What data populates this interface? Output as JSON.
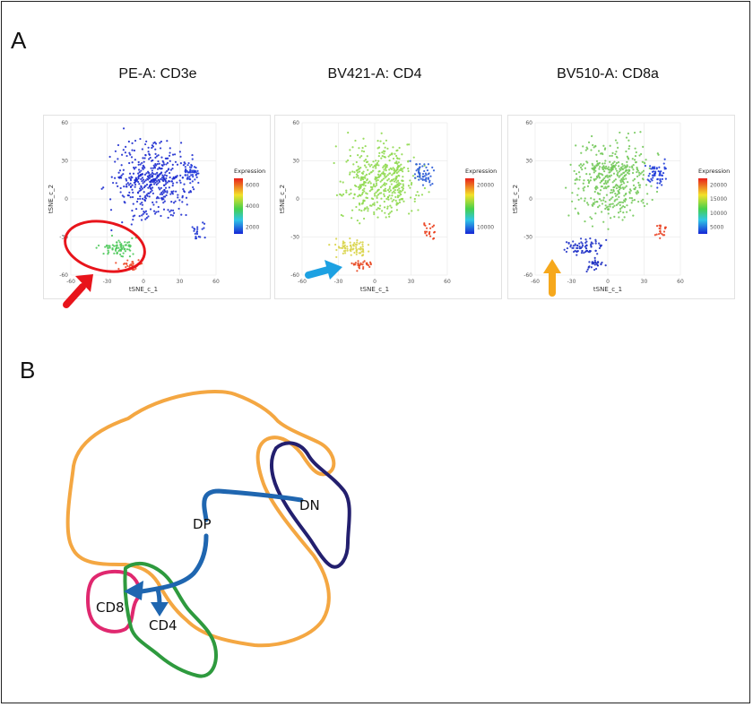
{
  "panel_a": {
    "letter": "A",
    "plots": [
      {
        "title": "PE-A: CD3e",
        "legend_title": "Expression",
        "legend_ticks": [
          "6000",
          "4000",
          "2000"
        ],
        "xlabel": "tSNE_c_1",
        "ylabel": "tSNE_c_2",
        "x_ticks": [
          "-60",
          "-30",
          "0",
          "30",
          "60"
        ],
        "y_ticks": [
          "60",
          "30",
          "0",
          "-30",
          "-60"
        ],
        "annotation": "red arrow and red ellipse marking high-CD3e cluster",
        "arrow_color": "#e8141b"
      },
      {
        "title": "BV421-A: CD4",
        "legend_title": "Expression",
        "legend_ticks": [
          "20000",
          "10000"
        ],
        "xlabel": "tSNE_c_1",
        "ylabel": "tSNE_c_2",
        "x_ticks": [
          "-60",
          "-30",
          "0",
          "30",
          "60"
        ],
        "y_ticks": [
          "60",
          "30",
          "0",
          "-30",
          "-60"
        ],
        "arrow_color": "#1da1e2"
      },
      {
        "title": "BV510-A: CD8a",
        "legend_title": "Expression",
        "legend_ticks": [
          "20000",
          "15000",
          "10000",
          "5000"
        ],
        "xlabel": "tSNE_c_1",
        "ylabel": "tSNE_c_2",
        "x_ticks": [
          "-60",
          "-30",
          "0",
          "30",
          "60"
        ],
        "y_ticks": [
          "60",
          "30",
          "0",
          "-30",
          "-60"
        ],
        "arrow_color": "#f6a81c"
      }
    ]
  },
  "panel_b": {
    "letter": "B",
    "labels": {
      "dp": "DP",
      "dn": "DN",
      "cd8": "CD8",
      "cd4": "CD4"
    },
    "colors": {
      "dp_outline": "#f4a742",
      "dn_outline": "#231f6e",
      "cd8_outline": "#e0286f",
      "cd4_outline": "#2e9a3e",
      "arrow": "#1f66b0"
    }
  }
}
